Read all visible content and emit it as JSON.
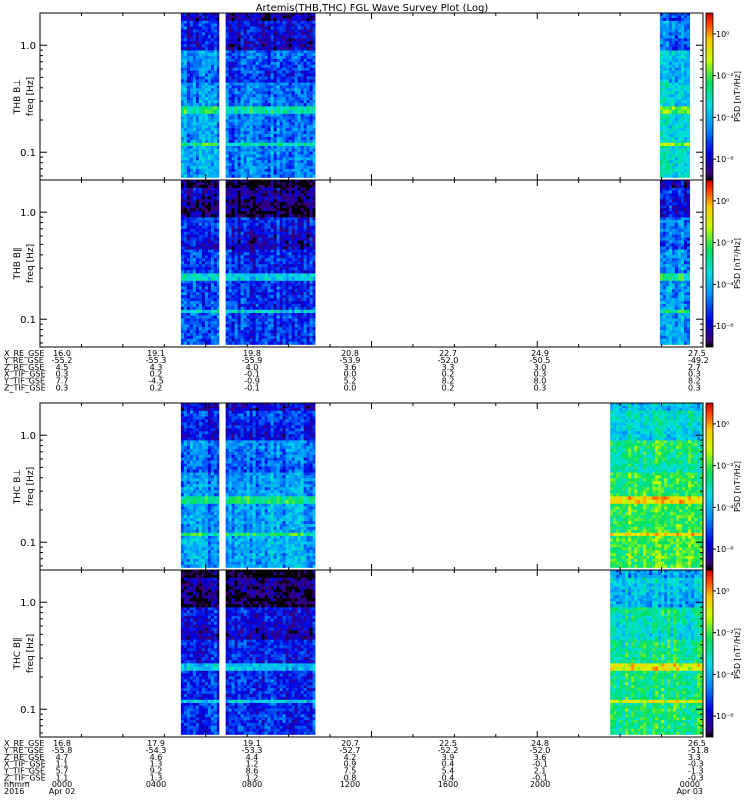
{
  "chart_data": {
    "type": "heatmap",
    "title": "Artemis(THB,THC) FGL Wave Survey Plot (Log)",
    "yscale": "log",
    "ylim": [
      0.055,
      2.0
    ],
    "yticks": [
      0.1,
      1.0
    ],
    "ytick_labels": [
      "0.1",
      "1.0"
    ],
    "colorscale": "rainbow",
    "colorbar": {
      "label": "PSD [nT²/Hz]",
      "ticks_log10": [
        0,
        -2,
        -4,
        -6
      ],
      "tick_labels": [
        "10⁰",
        "10⁻²",
        "10⁻⁴",
        "10⁻⁶"
      ]
    },
    "panels": [
      {
        "probe": "THB",
        "component": "B⊥",
        "label_line1": "THB B⊥",
        "label_line2": "freq [Hz]",
        "segments": [
          {
            "t_start": 0.85,
            "t_end": 1.08,
            "base": 0.34
          },
          {
            "t_start": 1.12,
            "t_end": 1.66,
            "base": 0.3
          },
          {
            "t_start": 3.74,
            "t_end": 3.92,
            "base": 0.44
          }
        ],
        "bright_band_freq": [
          0.22,
          0.27
        ]
      },
      {
        "probe": "THB",
        "component": "B∥",
        "label_line1": "THB B∥",
        "label_line2": "freq [Hz]",
        "segments": [
          {
            "t_start": 0.85,
            "t_end": 1.08,
            "base": 0.24
          },
          {
            "t_start": 1.12,
            "t_end": 1.66,
            "base": 0.22
          },
          {
            "t_start": 3.74,
            "t_end": 3.92,
            "base": 0.34
          }
        ],
        "bright_band_freq": [
          0.22,
          0.27
        ]
      },
      {
        "probe": "THC",
        "component": "B⊥",
        "label_line1": "THC B⊥",
        "label_line2": "freq [Hz]",
        "segments": [
          {
            "t_start": 0.85,
            "t_end": 1.08,
            "base": 0.34
          },
          {
            "t_start": 1.12,
            "t_end": 1.66,
            "base": 0.36
          },
          {
            "t_start": 3.44,
            "t_end": 4.0,
            "base": 0.62
          }
        ],
        "bright_band_freq": [
          0.22,
          0.27
        ]
      },
      {
        "probe": "THC",
        "component": "B∥",
        "label_line1": "THC B∥",
        "label_line2": "freq [Hz]",
        "segments": [
          {
            "t_start": 0.85,
            "t_end": 1.08,
            "base": 0.22
          },
          {
            "t_start": 1.12,
            "t_end": 1.66,
            "base": 0.22
          },
          {
            "t_start": 3.44,
            "t_end": 4.0,
            "base": 0.56
          }
        ],
        "bright_band_freq": [
          0.22,
          0.27
        ]
      }
    ],
    "ephemeris": [
      {
        "probe": "THB",
        "rows": [
          {
            "name": "X_RE_GSE",
            "values": [
              "16.0",
              "19.1",
              "19.8",
              "20.8",
              "22.7",
              "24.9",
              "27.5"
            ]
          },
          {
            "name": "Y_RE_GSE",
            "values": [
              "-55.2",
              "-55.3",
              "-55.9",
              "-53.9",
              "-52.0",
              "-50.5",
              "-49.2"
            ]
          },
          {
            "name": "Z_RE_GSE",
            "values": [
              "4.5",
              "4.3",
              "4.0",
              "3.6",
              "3.3",
              "3.0",
              "2.7"
            ]
          },
          {
            "name": "X_TIF_GSE",
            "values": [
              "0.3",
              "0.2",
              "-0.1",
              "0.0",
              "0.2",
              "0.3",
              "0.3"
            ]
          },
          {
            "name": "Y_TIF_GSE",
            "values": [
              "7.7",
              "-4.5",
              "-0.9",
              "5.2",
              "8.2",
              "8.0",
              "8.2"
            ]
          },
          {
            "name": "Z_TIF_GSE",
            "values": [
              "0.3",
              "0.2",
              "-0.1",
              "0.0",
              "0.2",
              "0.3",
              "0.3"
            ]
          }
        ]
      },
      {
        "probe": "THC",
        "rows": [
          {
            "name": "X_RE_GSE",
            "values": [
              "16.8",
              "17.9",
              "19.1",
              "20.7",
              "22.5",
              "24.8",
              "26.5"
            ]
          },
          {
            "name": "Y_RE_GSE",
            "values": [
              "-55.8",
              "-54.3",
              "-53.3",
              "-52.7",
              "-52.2",
              "-52.0",
              "-51.8"
            ]
          },
          {
            "name": "Z_RE_GSE",
            "values": [
              "4.7",
              "4.6",
              "4.4",
              "4.2",
              "3.9",
              "3.6",
              "3.3"
            ]
          },
          {
            "name": "X_TIF_GSE",
            "values": [
              "1.1",
              "1.3",
              "1.2",
              "0.9",
              "0.4",
              "-0.1",
              "-0.3"
            ]
          },
          {
            "name": "Y_TIF_GSE",
            "values": [
              "5.7",
              "9.2",
              "8.6",
              "7.5",
              "5.4",
              "2.1",
              "-1.3"
            ]
          },
          {
            "name": "Z_TIF_GSE",
            "values": [
              "1.1",
              "1.3",
              "1.2",
              "0.8",
              "0.4",
              "-0.1",
              "-0.3"
            ]
          }
        ]
      }
    ],
    "time_axis": {
      "row_label": "hhmm",
      "year_label": "2016",
      "times": [
        "0000",
        "0400",
        "0800",
        "1200",
        "1600",
        "2000",
        "0000"
      ],
      "dates": [
        "Apr 02",
        "",
        "",
        "",
        "",
        "",
        "Apr 03"
      ]
    }
  }
}
